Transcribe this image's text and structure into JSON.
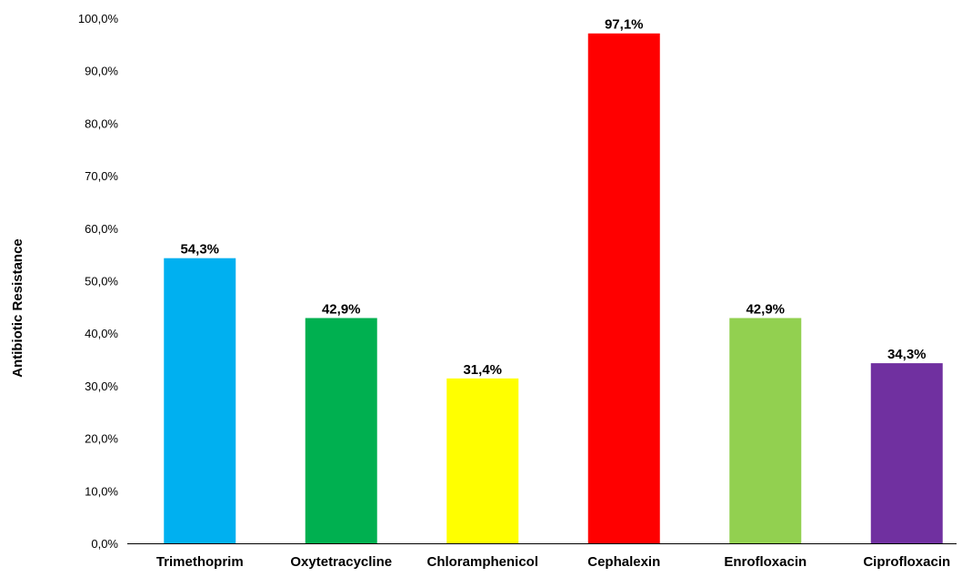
{
  "chart_data": {
    "type": "bar",
    "title": "",
    "xlabel": "",
    "ylabel": "Antibiotic Resistance",
    "ylim": [
      0,
      100
    ],
    "yticks": [
      "0,0%",
      "10,0%",
      "20,0%",
      "30,0%",
      "40,0%",
      "50,0%",
      "60,0%",
      "70,0%",
      "80,0%",
      "90,0%",
      "100,0%"
    ],
    "grid": false,
    "legend": "none",
    "categories": [
      "Trimethoprim",
      "Oxytetracycline",
      "Chloramphenicol",
      "Cephalexin",
      "Enrofloxacin",
      "Ciprofloxacin"
    ],
    "values": [
      54.3,
      42.9,
      31.4,
      97.1,
      42.9,
      34.3
    ],
    "value_labels": [
      "54,3%",
      "42,9%",
      "31,4%",
      "97,1%",
      "42,9%",
      "34,3%"
    ],
    "colors": [
      "#00b0f0",
      "#00b050",
      "#ffff00",
      "#ff0000",
      "#92d050",
      "#7030a0"
    ]
  }
}
